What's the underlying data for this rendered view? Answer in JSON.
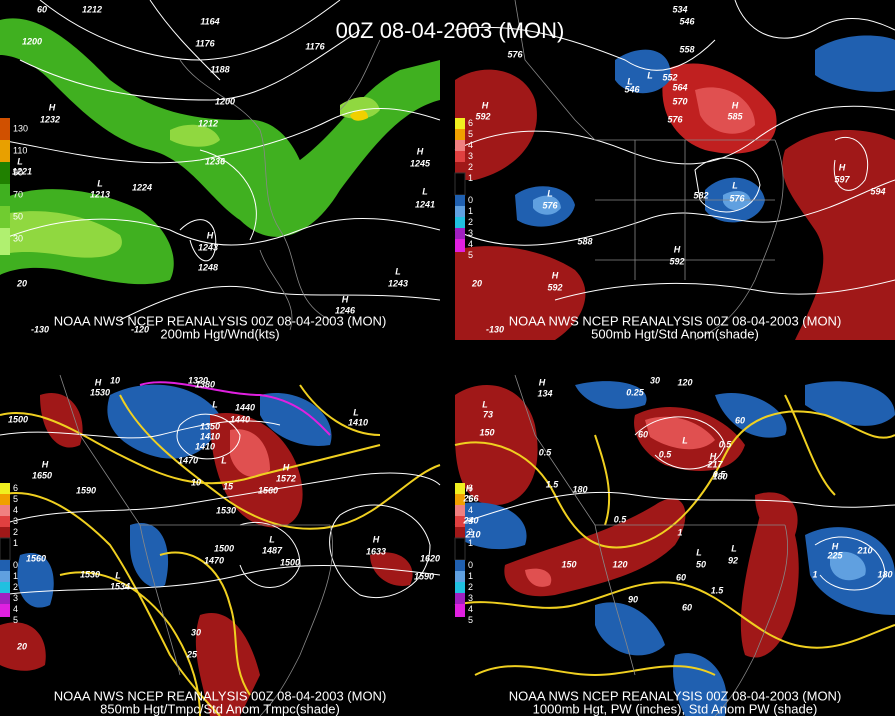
{
  "title": "00Z 08-04-2003 (MON)",
  "panels": [
    {
      "caption": "NOAA NWS NCEP REANALYSIS 00Z 08-04-2003 (MON)",
      "subcaption": "200mb Hgt/Wnd(kts)",
      "legend": [
        "130",
        "110",
        "90",
        "70",
        "50",
        "30"
      ],
      "labels": [
        "60",
        "1212",
        "1200",
        "1164",
        "1176",
        "1176",
        "1188",
        "1200",
        "1212",
        "1236",
        "1224",
        "H",
        "1232",
        "L",
        "1221",
        "L",
        "1213",
        "H",
        "1243",
        "1248",
        "H",
        "1245",
        "L",
        "1241",
        "L",
        "1243",
        "H",
        "1246",
        "20",
        "-130",
        "-120"
      ]
    },
    {
      "caption": "NOAA NWS NCEP REANALYSIS 00Z 08-04-2003 (MON)",
      "subcaption": "500mb Hgt/Std Anom(shade)",
      "legend": [
        "6",
        "5",
        "4",
        "3",
        "2",
        "1",
        "0",
        "1",
        "2",
        "3",
        "4",
        "5"
      ],
      "labels": [
        "534",
        "546",
        "558",
        "576",
        "L",
        "552",
        "L",
        "546",
        "564",
        "570",
        "576",
        "H",
        "585",
        "H",
        "592",
        "H",
        "597",
        "594",
        "L",
        "576",
        "582",
        "L",
        "576",
        "588",
        "H",
        "592",
        "H",
        "592",
        "20",
        "-130"
      ]
    },
    {
      "caption": "NOAA NWS NCEP REANALYSIS 00Z 08-04-2003 (MON)",
      "subcaption": "850mb Hgt/Tmpc/Std Anom Tmpc(shade)",
      "legend": [
        "6",
        "5",
        "4",
        "3",
        "2",
        "1",
        "0",
        "1",
        "2",
        "3",
        "4",
        "5"
      ],
      "labels": [
        "10",
        "H",
        "1530",
        "1320",
        "1380",
        "1440",
        "L",
        "1440",
        "1500",
        "L",
        "1410",
        "1350",
        "1410",
        "1470",
        "L",
        "1410",
        "H",
        "1650",
        "1590",
        "15",
        "H",
        "1572",
        "1560",
        "1530",
        "10",
        "L",
        "1487",
        "1500",
        "1560",
        "1530",
        "L",
        "1534",
        "1500",
        "1470",
        "H",
        "1633",
        "1620",
        "1590",
        "30",
        "25",
        "20"
      ]
    },
    {
      "caption": "NOAA NWS NCEP REANALYSIS 00Z 08-04-2003 (MON)",
      "subcaption": "1000mb Hgt, PW (inches), Std Anom PW (shade)",
      "legend": [
        "6",
        "5",
        "4",
        "3",
        "2",
        "1",
        "0",
        "1",
        "2",
        "3",
        "4",
        "5"
      ],
      "labels": [
        "30",
        "120",
        "L",
        "73",
        "H",
        "134",
        "150",
        "0.5",
        "0.25",
        "0.5",
        "L",
        "60",
        "60",
        "0.5",
        "H",
        "217",
        "180",
        "0.5",
        "1.5",
        "180",
        "H",
        "266",
        "240",
        "210",
        "0.5",
        "1",
        "150",
        "120",
        "L",
        "50",
        "60",
        "90",
        "60",
        "1.5",
        "L",
        "92",
        "H",
        "225",
        "210",
        "180",
        "1"
      ]
    }
  ]
}
